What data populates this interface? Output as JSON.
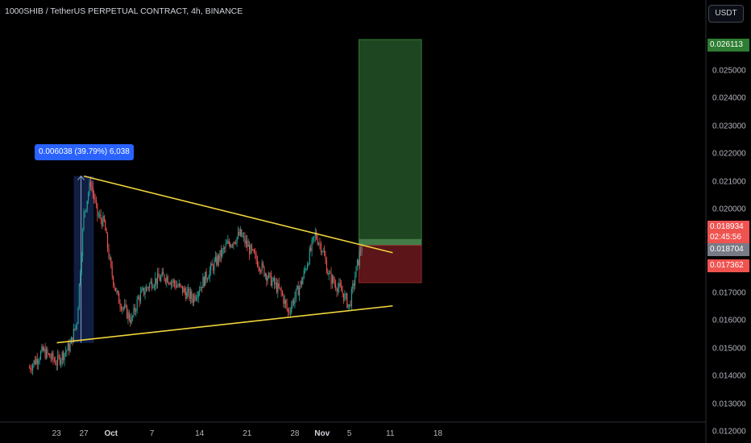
{
  "header": {
    "title": "1000SHIB / TetherUS PERPETUAL CONTRACT, 4h, BINANCE",
    "currency_button": "USDT"
  },
  "colors": {
    "background": "#000000",
    "up_candle": "#26a69a",
    "down_candle": "#ef5350",
    "trendline": "#f0d53c",
    "target_zone": "#1e4620",
    "stop_zone": "#5c1518",
    "measure_bg": "#2962ff"
  },
  "measure": {
    "label": "0.006038 (39.79%) 6,038"
  },
  "price_tags": {
    "target": "0.026113",
    "current": "0.018934",
    "countdown": "02:45:56",
    "entry": "0.018704",
    "stop": "0.017362"
  },
  "chart_data": {
    "type": "candlestick",
    "title": "1000SHIB / TetherUS PERPETUAL CONTRACT, 4h, BINANCE",
    "x_tick_labels": [
      "23",
      "27",
      "Oct",
      "7",
      "14",
      "21",
      "28",
      "Nov",
      "5",
      "11",
      "18"
    ],
    "y_tick_labels": [
      "0.025000",
      "0.024000",
      "0.023000",
      "0.022000",
      "0.021000",
      "0.020000",
      "0.017000",
      "0.016000",
      "0.015000",
      "0.014000",
      "0.013000",
      "0.012000"
    ],
    "ylim": [
      0.0112,
      0.0276
    ],
    "price_path": [
      {
        "date": "2023-09-19",
        "price": 0.0143
      },
      {
        "date": "2023-09-21",
        "price": 0.0149
      },
      {
        "date": "2023-09-23",
        "price": 0.0145
      },
      {
        "date": "2023-09-25",
        "price": 0.0151
      },
      {
        "date": "2023-09-26",
        "price": 0.016
      },
      {
        "date": "2023-09-27",
        "price": 0.0198
      },
      {
        "date": "2023-09-28",
        "price": 0.021
      },
      {
        "date": "2023-09-29",
        "price": 0.0198
      },
      {
        "date": "2023-09-30",
        "price": 0.0195
      },
      {
        "date": "2023-10-01",
        "price": 0.0178
      },
      {
        "date": "2023-10-02",
        "price": 0.0168
      },
      {
        "date": "2023-10-04",
        "price": 0.016
      },
      {
        "date": "2023-10-05",
        "price": 0.0168
      },
      {
        "date": "2023-10-07",
        "price": 0.0174
      },
      {
        "date": "2023-10-09",
        "price": 0.0176
      },
      {
        "date": "2023-10-11",
        "price": 0.0172
      },
      {
        "date": "2023-10-13",
        "price": 0.0168
      },
      {
        "date": "2023-10-15",
        "price": 0.0176
      },
      {
        "date": "2023-10-18",
        "price": 0.0187
      },
      {
        "date": "2023-10-20",
        "price": 0.0191
      },
      {
        "date": "2023-10-22",
        "price": 0.0183
      },
      {
        "date": "2023-10-24",
        "price": 0.0176
      },
      {
        "date": "2023-10-26",
        "price": 0.017
      },
      {
        "date": "2023-10-27",
        "price": 0.0163
      },
      {
        "date": "2023-10-29",
        "price": 0.0174
      },
      {
        "date": "2023-10-31",
        "price": 0.0191
      },
      {
        "date": "2023-11-01",
        "price": 0.0186
      },
      {
        "date": "2023-11-02",
        "price": 0.0176
      },
      {
        "date": "2023-11-04",
        "price": 0.017
      },
      {
        "date": "2023-11-05",
        "price": 0.0165
      },
      {
        "date": "2023-11-06",
        "price": 0.0178
      },
      {
        "date": "2023-11-07",
        "price": 0.018934
      }
    ],
    "upper_trendline": [
      {
        "date": "2023-09-27",
        "price": 0.0212
      },
      {
        "date": "2023-11-09",
        "price": 0.0185
      }
    ],
    "lower_trendline": [
      {
        "date": "2023-09-26",
        "price": 0.0152
      },
      {
        "date": "2023-11-09",
        "price": 0.0165
      }
    ],
    "measure_range": {
      "from": 0.0152,
      "to": 0.0212,
      "start_date": "2023-09-26",
      "end_date": "2023-09-28"
    },
    "position": {
      "type": "long",
      "start_date": "2023-11-07",
      "end_date": "2023-11-15",
      "entry": 0.018704,
      "target": 0.026113,
      "stop": 0.017362,
      "current": 0.018934
    }
  }
}
